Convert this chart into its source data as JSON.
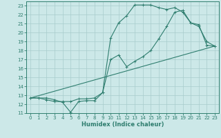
{
  "xlabel": "Humidex (Indice chaleur)",
  "bg_color": "#cce8e8",
  "line_color": "#2e7d6e",
  "grid_color": "#a8cccc",
  "xlim": [
    -0.5,
    23.5
  ],
  "ylim": [
    11,
    23.5
  ],
  "xticks": [
    0,
    1,
    2,
    3,
    4,
    5,
    6,
    7,
    8,
    9,
    10,
    11,
    12,
    13,
    14,
    15,
    16,
    17,
    18,
    19,
    20,
    21,
    22,
    23
  ],
  "yticks": [
    11,
    12,
    13,
    14,
    15,
    16,
    17,
    18,
    19,
    20,
    21,
    22,
    23
  ],
  "line1_x": [
    0,
    1,
    2,
    3,
    4,
    5,
    6,
    7,
    8,
    9,
    10,
    11,
    12,
    13,
    14,
    15,
    16,
    17,
    18,
    19,
    20,
    21,
    22,
    23
  ],
  "line1_y": [
    12.7,
    12.7,
    12.7,
    12.5,
    12.2,
    11.1,
    12.3,
    12.4,
    12.4,
    13.3,
    19.4,
    21.1,
    21.9,
    23.1,
    23.1,
    23.1,
    22.8,
    22.6,
    22.8,
    22.3,
    21.1,
    20.7,
    19.0,
    18.5
  ],
  "line2_x": [
    0,
    23
  ],
  "line2_y": [
    12.7,
    18.5
  ],
  "line3_x": [
    0,
    1,
    2,
    3,
    4,
    5,
    6,
    7,
    8,
    9,
    10,
    11,
    12,
    13,
    14,
    15,
    16,
    17,
    18,
    19,
    20,
    21,
    22,
    23
  ],
  "line3_y": [
    12.7,
    12.7,
    12.5,
    12.3,
    12.3,
    12.3,
    12.6,
    12.6,
    12.7,
    13.3,
    17.0,
    17.5,
    16.2,
    16.8,
    17.3,
    18.0,
    19.3,
    20.7,
    22.3,
    22.5,
    21.1,
    20.9,
    18.6,
    18.5
  ]
}
